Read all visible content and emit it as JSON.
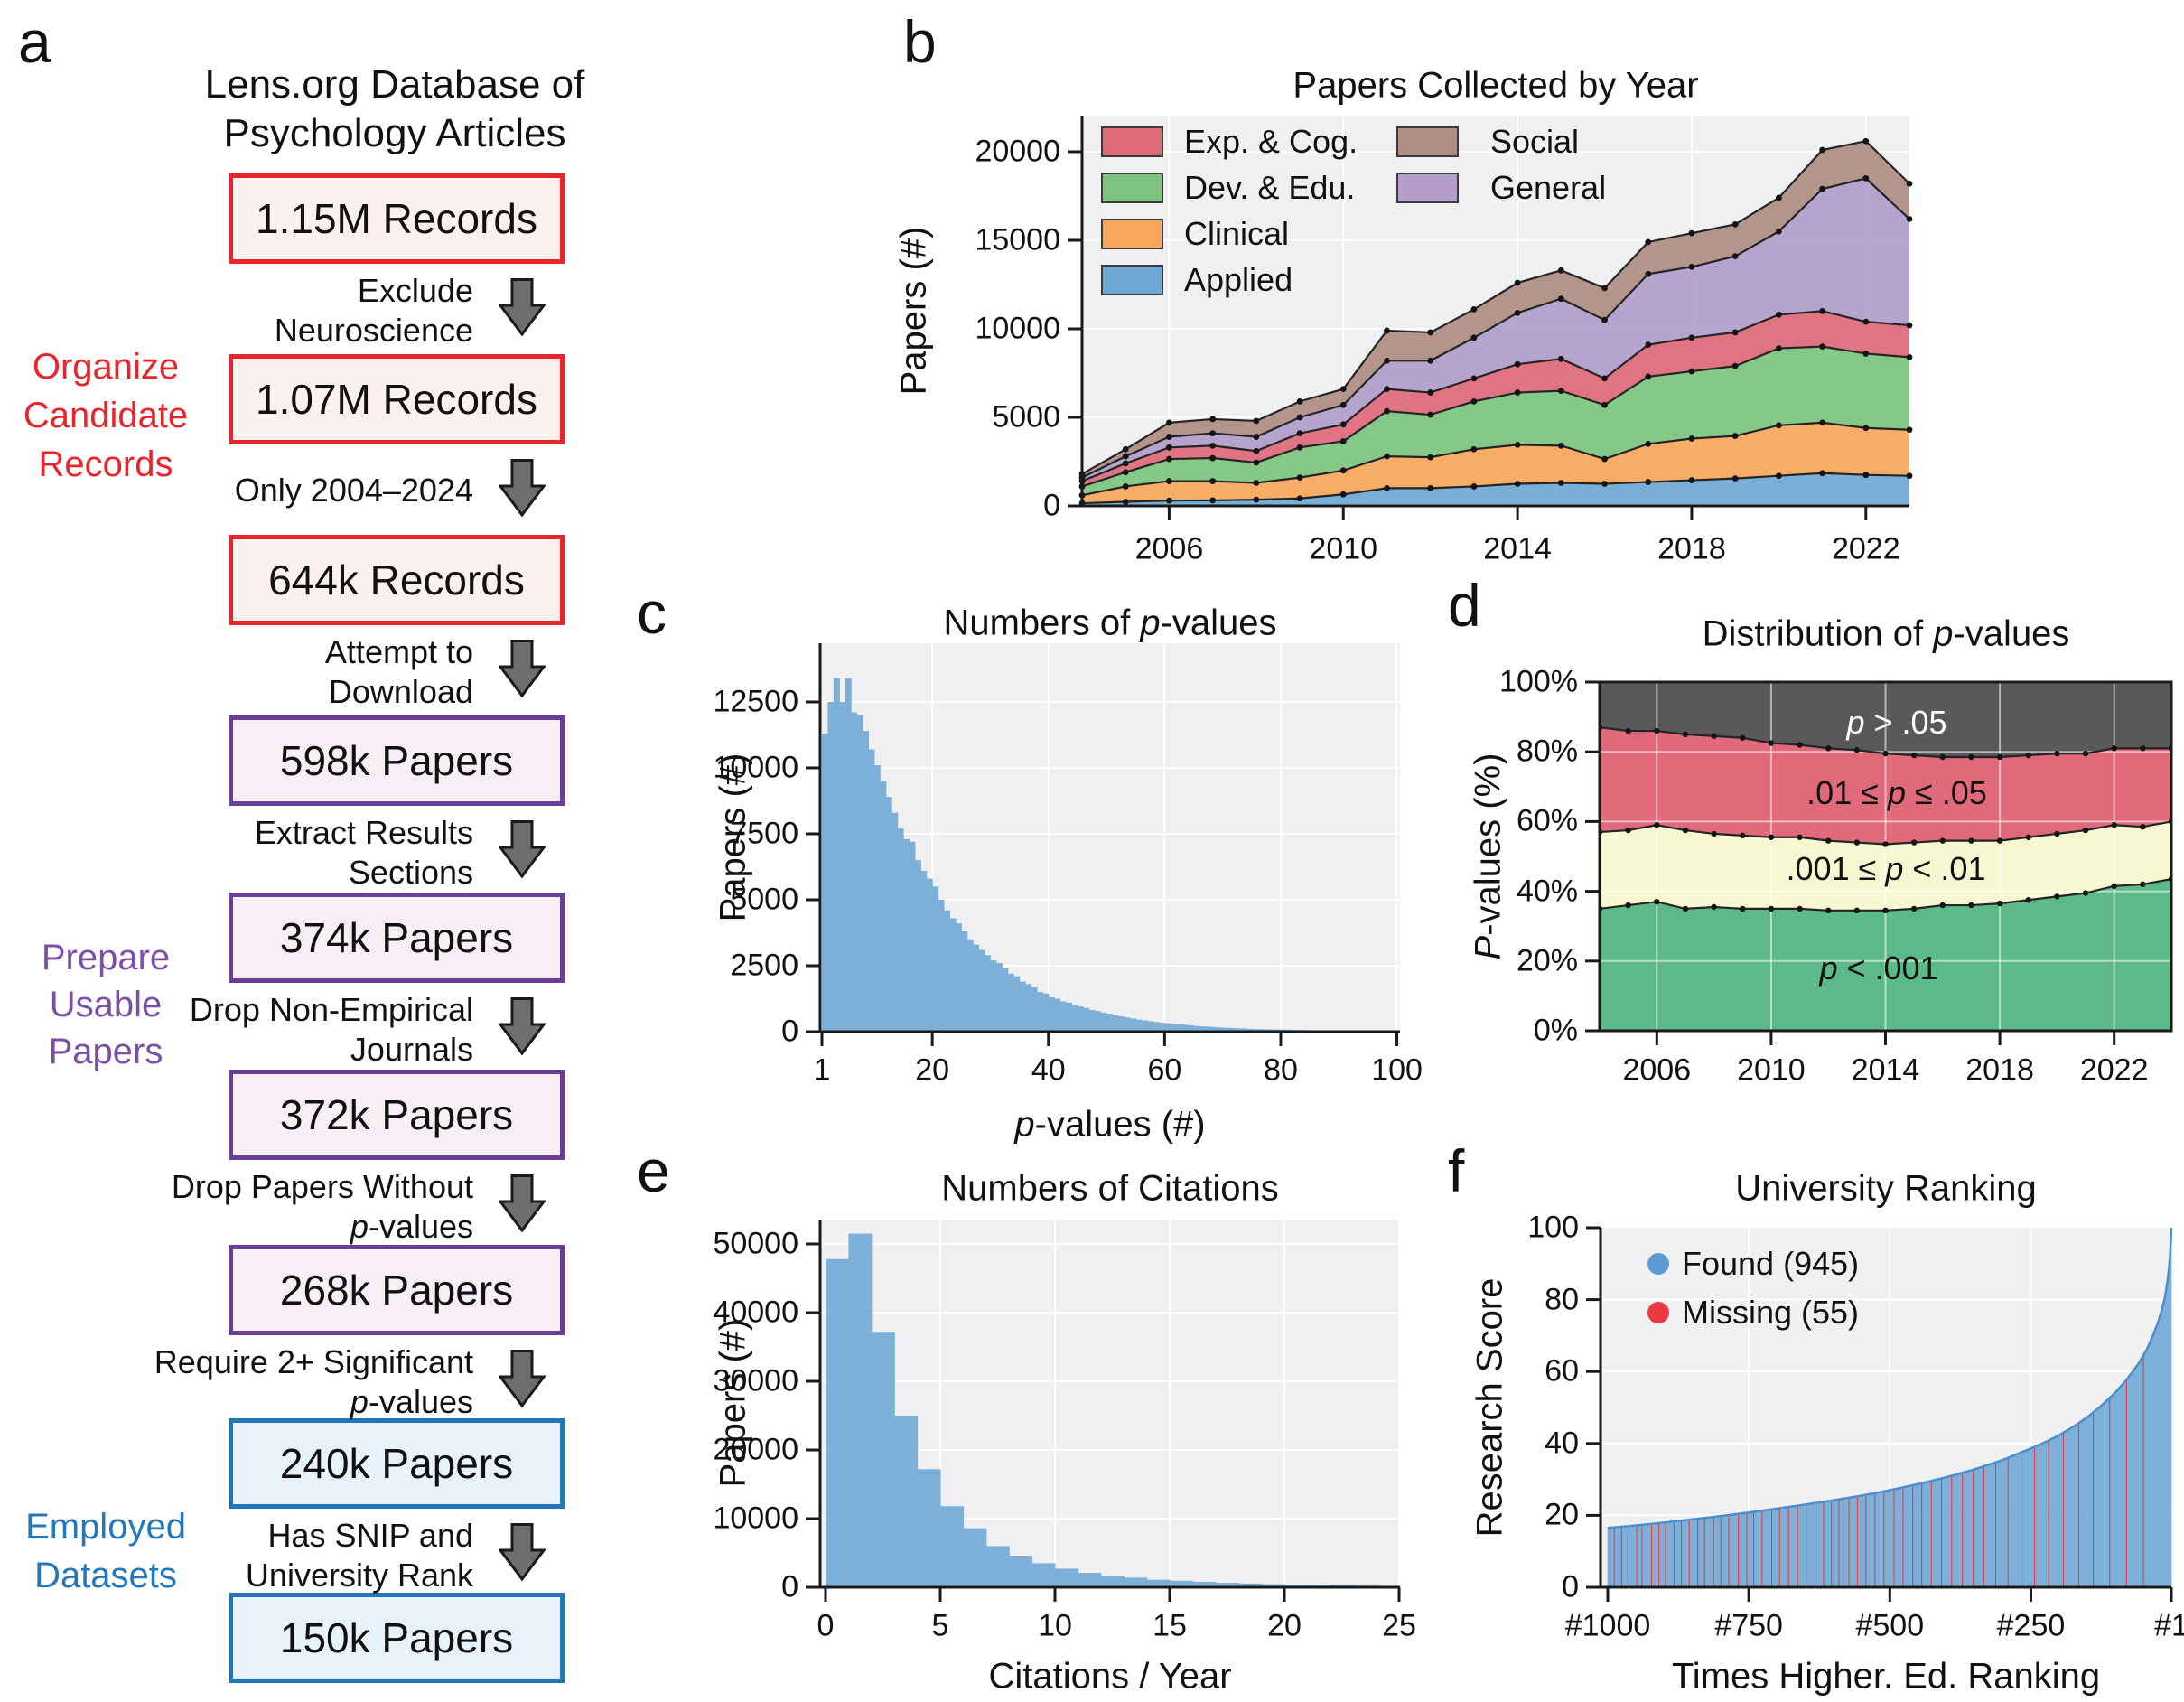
{
  "panel_letters": {
    "a": "a",
    "b": "b",
    "c": "c",
    "d": "d",
    "e": "e",
    "f": "f"
  },
  "flowchart": {
    "title_lines": [
      "Lens.org Database of",
      "Psychology Articles"
    ],
    "boxes": [
      {
        "label": "1.15M Records",
        "group": "red"
      },
      {
        "label": "1.07M Records",
        "group": "red"
      },
      {
        "label": "644k Records",
        "group": "red"
      },
      {
        "label": "598k Papers",
        "group": "purple"
      },
      {
        "label": "374k Papers",
        "group": "purple"
      },
      {
        "label": "372k Papers",
        "group": "purple"
      },
      {
        "label": "268k Papers",
        "group": "purple"
      },
      {
        "label": "240k Papers",
        "group": "blue"
      },
      {
        "label": "150k Papers",
        "group": "blue"
      }
    ],
    "steps": [
      {
        "lines": [
          "Exclude",
          "Neuroscience"
        ]
      },
      {
        "lines": [
          "Only 2004–2024"
        ]
      },
      {
        "lines": [
          "Attempt to",
          "Download"
        ]
      },
      {
        "lines": [
          "Extract Results",
          "Sections"
        ]
      },
      {
        "lines": [
          "Drop Non-Empirical",
          "Journals"
        ]
      },
      {
        "lines": [
          "Drop Papers Without",
          "[[p]]-values"
        ]
      },
      {
        "lines": [
          "Require 2+ Significant",
          "[[p]]-values"
        ]
      },
      {
        "lines": [
          "Has SNIP and",
          "University Rank"
        ]
      }
    ],
    "side_labels": [
      {
        "lines": [
          "Organize",
          "Candidate",
          "Records"
        ],
        "color": "#e8252b"
      },
      {
        "lines": [
          "Prepare",
          "Usable",
          "Papers"
        ],
        "color": "#7a4fa5"
      },
      {
        "lines": [
          "Employed",
          "Datasets"
        ],
        "color": "#2277bd"
      }
    ],
    "colors": {
      "red": {
        "border": "#e8252b",
        "fill": "#fdf1ef"
      },
      "purple": {
        "border": "#6a3d98",
        "fill": "#f7eef6"
      },
      "blue": {
        "border": "#2176b5",
        "fill": "#e8f2fa"
      },
      "arrow": {
        "fill": "#6e6e6e",
        "stroke": "#1a1a1a"
      }
    }
  },
  "style": {
    "plot_bg": "#f0f0f2",
    "grid_color": "#ffffff",
    "spine_color": "#1a1a1a",
    "boundary_color": "#242424",
    "dot_color": "#141414"
  },
  "chart_data": [
    {
      "id": "b",
      "type": "area",
      "subtype": "stacked_area",
      "title": "Papers Collected by Year",
      "xlabel": "",
      "ylabel": "Papers (#)",
      "x": [
        2004,
        2005,
        2006,
        2007,
        2008,
        2009,
        2010,
        2011,
        2012,
        2013,
        2014,
        2015,
        2016,
        2017,
        2018,
        2019,
        2020,
        2021,
        2022,
        2023
      ],
      "series": [
        {
          "name": "Applied",
          "color": "#6fa8d4",
          "values": [
            150,
            230,
            300,
            310,
            350,
            420,
            650,
            1000,
            1000,
            1100,
            1250,
            1300,
            1250,
            1350,
            1450,
            1550,
            1700,
            1850,
            1750,
            1700
          ]
        },
        {
          "name": "Clinical",
          "color": "#f8a75a",
          "values": [
            450,
            870,
            1100,
            1090,
            950,
            1180,
            1350,
            1800,
            1750,
            2100,
            2200,
            2100,
            1400,
            2150,
            2350,
            2400,
            2850,
            2850,
            2650,
            2600
          ]
        },
        {
          "name": "Dev. & Edu.",
          "color": "#7cc47f",
          "values": [
            500,
            800,
            1250,
            1300,
            1150,
            1700,
            1650,
            2550,
            2400,
            2700,
            2950,
            3100,
            3050,
            3800,
            3800,
            3950,
            4350,
            4300,
            4200,
            4100
          ]
        },
        {
          "name": "Exp. & Cog.",
          "color": "#e0697a",
          "values": [
            300,
            500,
            650,
            700,
            650,
            800,
            950,
            1250,
            1250,
            1300,
            1600,
            1800,
            1500,
            1800,
            1900,
            1900,
            1900,
            2000,
            1800,
            1800
          ]
        },
        {
          "name": "General",
          "color": "#b29dcb",
          "values": [
            200,
            400,
            600,
            700,
            800,
            900,
            1100,
            1600,
            1800,
            2300,
            2900,
            3400,
            3300,
            4000,
            4000,
            4300,
            4700,
            6900,
            8100,
            6000
          ]
        },
        {
          "name": "Social",
          "color": "#ae8d83",
          "values": [
            200,
            400,
            800,
            800,
            900,
            900,
            900,
            1700,
            1600,
            1600,
            1700,
            1600,
            1800,
            1800,
            1900,
            1800,
            1900,
            2200,
            2100,
            2000
          ]
        }
      ],
      "legend": {
        "col1": [
          "Exp. & Cog.",
          "Dev. & Edu.",
          "Clinical",
          "Applied"
        ],
        "col2": [
          "Social",
          "General"
        ]
      },
      "xticks": [
        2006,
        2010,
        2014,
        2018,
        2022
      ],
      "yticks": [
        0,
        5000,
        10000,
        15000,
        20000
      ],
      "ylim": [
        0,
        22040
      ],
      "grid": true,
      "legend_position": "upper left"
    },
    {
      "id": "c",
      "type": "bar",
      "subtype": "histogram",
      "title": "Numbers of [[p]]-values",
      "xlabel": "[[p]]-values (#)",
      "ylabel": "Papers (#)",
      "bin_start": 1,
      "bin_width": 1,
      "values": [
        11300,
        12500,
        13400,
        12500,
        13400,
        12100,
        12000,
        11400,
        10700,
        10100,
        9500,
        8900,
        8300,
        7700,
        7300,
        7200,
        6500,
        6100,
        5800,
        5500,
        5000,
        4600,
        4300,
        4100,
        3800,
        3500,
        3300,
        3100,
        2900,
        2700,
        2600,
        2400,
        2200,
        2100,
        1900,
        1800,
        1700,
        1500,
        1450,
        1300,
        1250,
        1150,
        1100,
        1000,
        950,
        900,
        820,
        780,
        720,
        680,
        620,
        580,
        540,
        500,
        460,
        430,
        400,
        370,
        340,
        320,
        300,
        280,
        260,
        240,
        220,
        200,
        190,
        175,
        160,
        150,
        140,
        130,
        120,
        110,
        100,
        95,
        90,
        85,
        80,
        75,
        70,
        65,
        60,
        55,
        52,
        50,
        48,
        45,
        42,
        40,
        38,
        36,
        34,
        32,
        30,
        28,
        26,
        25,
        24,
        23
      ],
      "color": "#7cb0d8",
      "xticks": [
        1,
        20,
        40,
        60,
        80,
        100
      ],
      "yticks": [
        0,
        2500,
        5000,
        7500,
        10000,
        12500
      ],
      "ylim": [
        0,
        14725
      ]
    },
    {
      "id": "d",
      "type": "area",
      "subtype": "stacked_area_percent",
      "title": "Distribution of [[p]]-values",
      "xlabel": "",
      "ylabel": "[[P]]-values (%)",
      "x": [
        2004,
        2005,
        2006,
        2007,
        2008,
        2009,
        2010,
        2011,
        2012,
        2013,
        2014,
        2015,
        2016,
        2017,
        2018,
        2019,
        2020,
        2021,
        2022,
        2023,
        2024
      ],
      "bands": [
        {
          "label": "[[p]] < .001",
          "color": "#5cb988",
          "label_color": "#111111",
          "values": [
            35,
            36,
            37,
            35,
            35.5,
            35,
            35,
            35,
            34.5,
            34.5,
            34.5,
            35,
            36,
            36,
            36.5,
            37.5,
            38.5,
            39.5,
            41.5,
            42,
            43.5
          ]
        },
        {
          "label": ".001 ≤ [[p]] < .01",
          "color": "#f7f7d1",
          "label_color": "#111111",
          "values": [
            22,
            21.5,
            22,
            22.5,
            21,
            21,
            20.5,
            20.5,
            20,
            19.5,
            19,
            19,
            18.5,
            18.5,
            18,
            18,
            18,
            18,
            17.5,
            16.5,
            16.5
          ]
        },
        {
          "label": ".01 ≤ [[p]] ≤ .05",
          "color": "#e0697a",
          "label_color": "#111111",
          "values": [
            30,
            28.5,
            27,
            27.5,
            28,
            28,
            27,
            26.5,
            26.5,
            26.5,
            26,
            25,
            24,
            24,
            24,
            23.5,
            23,
            22,
            22,
            22.5,
            21
          ]
        },
        {
          "label": "[[p]] > .05",
          "color": "#59595c",
          "label_color": "#ffffff",
          "values": [
            13,
            14,
            14,
            15,
            15.5,
            16,
            17.5,
            18,
            19,
            19.5,
            20.5,
            21,
            21.5,
            21.5,
            21.5,
            21,
            20.5,
            20.5,
            19,
            19,
            19
          ]
        }
      ],
      "xticks": [
        2006,
        2010,
        2014,
        2018,
        2022
      ],
      "yticks": [
        0,
        20,
        40,
        60,
        80,
        100
      ],
      "ytick_labels": [
        "0%",
        "20%",
        "40%",
        "60%",
        "80%",
        "100%"
      ],
      "ylim": [
        0,
        100
      ]
    },
    {
      "id": "e",
      "type": "bar",
      "subtype": "histogram",
      "title": "Numbers of Citations",
      "xlabel": "Citations / Year",
      "ylabel": "Papers (#)",
      "bin_start": 0,
      "bin_width": 1,
      "values": [
        47800,
        51500,
        37200,
        25000,
        17200,
        11800,
        8600,
        6000,
        4600,
        3500,
        2700,
        2100,
        1700,
        1400,
        1100,
        950,
        800,
        650,
        550,
        450,
        380,
        320,
        270,
        230,
        200
      ],
      "color": "#7cb0d8",
      "xticks": [
        0,
        5,
        10,
        15,
        20,
        25
      ],
      "yticks": [
        0,
        10000,
        20000,
        30000,
        40000,
        50000
      ],
      "ylim": [
        0,
        53550
      ]
    },
    {
      "id": "f",
      "type": "bar",
      "subtype": "rank_bars",
      "title": "University Ranking",
      "xlabel": "Times Higher. Ed. Ranking",
      "ylabel": "Research Score",
      "legend": [
        {
          "label": "Found (945)",
          "color": "#5b9bd5"
        },
        {
          "label": "Missing (55)",
          "color": "#e8393f"
        }
      ],
      "bar_colors": {
        "found": "#79add8",
        "missing": "#e8393f",
        "top_line": "#4a8fcc"
      },
      "curve_samples": [
        [
          1000,
          16.5
        ],
        [
          950,
          17.2
        ],
        [
          900,
          18
        ],
        [
          850,
          18.9
        ],
        [
          800,
          19.8
        ],
        [
          750,
          20.8
        ],
        [
          700,
          21.9
        ],
        [
          650,
          23
        ],
        [
          600,
          24.2
        ],
        [
          550,
          25.5
        ],
        [
          500,
          27
        ],
        [
          450,
          28.7
        ],
        [
          400,
          30.6
        ],
        [
          350,
          32.8
        ],
        [
          300,
          35.4
        ],
        [
          250,
          38.6
        ],
        [
          225,
          40.3
        ],
        [
          200,
          42.3
        ],
        [
          175,
          44.6
        ],
        [
          150,
          47.3
        ],
        [
          125,
          50.5
        ],
        [
          100,
          54.2
        ],
        [
          80,
          57.8
        ],
        [
          60,
          62
        ],
        [
          45,
          66
        ],
        [
          35,
          69.5
        ],
        [
          25,
          73.5
        ],
        [
          18,
          77
        ],
        [
          12,
          81
        ],
        [
          8,
          85
        ],
        [
          5,
          89
        ],
        [
          3,
          93
        ],
        [
          2,
          96
        ],
        [
          1,
          100
        ]
      ],
      "missing_positions": [
        12,
        25,
        38,
        52,
        61,
        78,
        91,
        103,
        118,
        131,
        145,
        160,
        172,
        188,
        201,
        215,
        232,
        247,
        259,
        274,
        291,
        305,
        321,
        337,
        352,
        368,
        383,
        397,
        410,
        428,
        443,
        458,
        474,
        490,
        508,
        524,
        541,
        557,
        574,
        592,
        610,
        629,
        648,
        667,
        688,
        710,
        733,
        757,
        782,
        808,
        835,
        861,
        890,
        920,
        950
      ],
      "xticks": [
        1000,
        750,
        500,
        250,
        1
      ],
      "xtick_labels": [
        "#1000",
        "#750",
        "#500",
        "#250",
        "#1"
      ],
      "yticks": [
        0,
        20,
        40,
        60,
        80,
        100
      ],
      "ylim": [
        0,
        100
      ]
    }
  ]
}
